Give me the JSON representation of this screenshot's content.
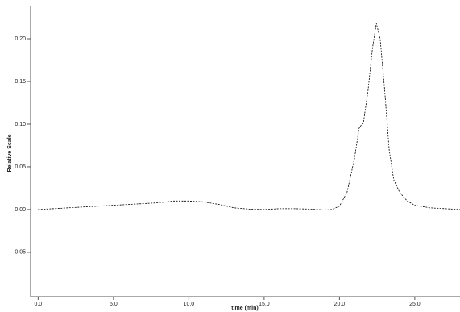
{
  "chart_data": {
    "type": "line",
    "x_label": "time (min)",
    "y_label": "Relative Scale",
    "series": [
      {
        "color": "#000000",
        "x": [
          0,
          2,
          4,
          6,
          8,
          9,
          10,
          11,
          12,
          13,
          14,
          15,
          16,
          17,
          18,
          19,
          19.5,
          20,
          20.5,
          21,
          21.3,
          21.6,
          21.9,
          22.2,
          22.45,
          22.7,
          23,
          23.3,
          23.6,
          24,
          24.5,
          25,
          26,
          27,
          28
        ],
        "values": [
          0,
          0.002,
          0.004,
          0.006,
          0.008,
          0.01,
          0.01,
          0.009,
          0.006,
          0.002,
          0.0005,
          0,
          0.001,
          0.001,
          0.0005,
          -0.0005,
          0,
          0.004,
          0.02,
          0.06,
          0.095,
          0.103,
          0.14,
          0.19,
          0.218,
          0.2,
          0.14,
          0.07,
          0.035,
          0.02,
          0.01,
          0.005,
          0.002,
          0.001,
          0
        ]
      }
    ],
    "xlim": [
      -0.5,
      28.0
    ],
    "ylim": [
      -0.102,
      0.234
    ],
    "xticks": [
      {
        "value": 0,
        "label": "0.0"
      },
      {
        "value": 5,
        "label": "5.0"
      },
      {
        "value": 10,
        "label": "10.0"
      },
      {
        "value": 15,
        "label": "15.0"
      },
      {
        "value": 20,
        "label": "20.0"
      },
      {
        "value": 25,
        "label": "25.0"
      }
    ],
    "yticks": [
      {
        "value": -0.05,
        "label": "-0.05"
      },
      {
        "value": 0,
        "label": "0.00"
      },
      {
        "value": 0.05,
        "label": "0.05"
      },
      {
        "value": 0.1,
        "label": "0.10"
      },
      {
        "value": 0.15,
        "label": "0.15"
      },
      {
        "value": 0.2,
        "label": "0.20"
      }
    ]
  }
}
